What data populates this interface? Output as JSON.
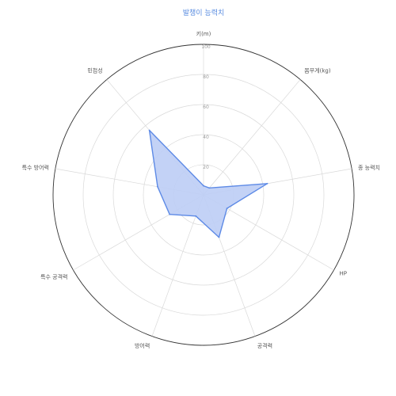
{
  "chart_data": {
    "type": "radar",
    "title": "발챙이 능력치",
    "axes": [
      "키(m)",
      "몸무게(kg)",
      "종 능력치",
      "HP",
      "공격력",
      "방어력",
      "특수 공격력",
      "특수 방어력",
      "민첩성"
    ],
    "series": [
      {
        "values": [
          6,
          6,
          43,
          18,
          30,
          15,
          26,
          31,
          56
        ]
      }
    ],
    "rlim": [
      0,
      100
    ],
    "ticks": [
      20,
      40,
      60,
      80,
      100
    ],
    "tick_labels": [
      "20",
      "40",
      "60",
      "80",
      "100"
    ],
    "colors": {
      "fill": "#bccdf5",
      "stroke": "#5d8ae6",
      "grid": "#d9d9d9",
      "outer_ring": "#333333",
      "title": "#5a8de0"
    }
  }
}
